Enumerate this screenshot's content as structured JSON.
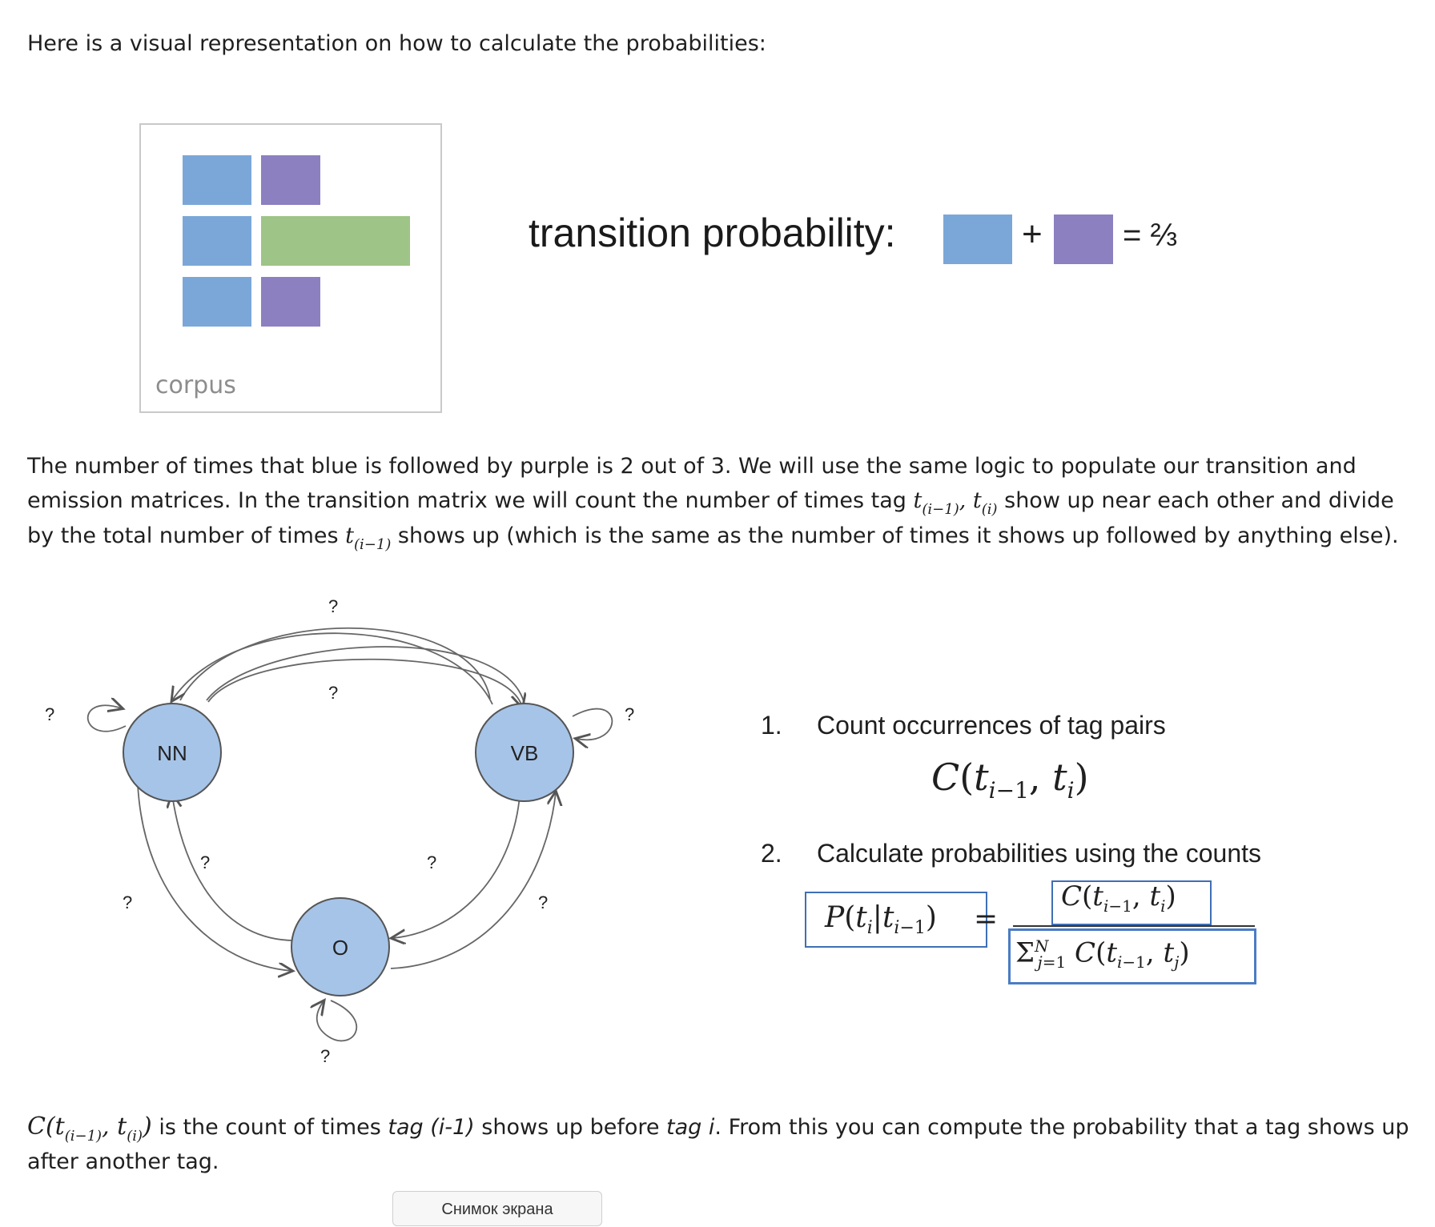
{
  "intro": "Here is a visual representation on how to calculate the probabilities:",
  "corpus": {
    "label": "corpus",
    "colors": {
      "blue": "#7ba7d8",
      "purple": "#8c80c0",
      "green": "#9ec487"
    }
  },
  "transition": {
    "label": "transition probability:",
    "plus": "+",
    "result": "= ⅔"
  },
  "explanation": {
    "p1": "The number of times that blue is followed by purple is 2 out of 3. We will use the same logic to populate our transition and",
    "p2a": "emission matrices. In the transition matrix we will count the number of times tag ",
    "p2b": " show up near each other and divide",
    "p3a": "by the total number of times ",
    "p3b": " shows up (which is the same as the number of times it shows up followed by anything else)."
  },
  "diagram": {
    "nodes": {
      "nn": "NN",
      "vb": "VB",
      "o": "O"
    },
    "unknown": "?"
  },
  "steps": {
    "s1_num": "1.",
    "s1_text": "Count occurrences of tag pairs",
    "s2_num": "2.",
    "s2_text": "Calculate probabilities using the counts"
  },
  "footer": {
    "t1": " is the count of times ",
    "t2": "tag (i-1)",
    "t3": " shows up before ",
    "t4": "tag i",
    "t5": ". From this you can compute the probability that a tag shows up",
    "t6": "after another tag."
  },
  "button": "Снимок экрана"
}
